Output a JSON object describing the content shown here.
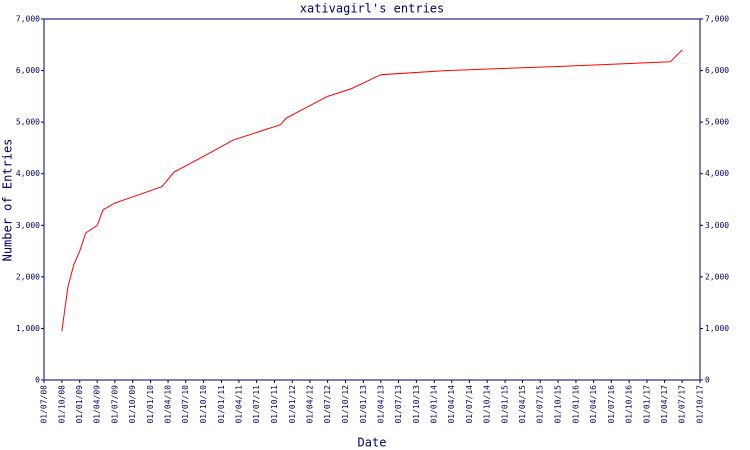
{
  "chart_data": {
    "type": "line",
    "title": "xativagirl's entries",
    "x_label": "Date",
    "y_label": "Number of Entries",
    "x": [
      "01/10/08",
      "01/11/08",
      "01/12/08",
      "01/01/09",
      "01/02/09",
      "01/04/09",
      "01/05/09",
      "01/07/09",
      "01/03/10",
      "01/05/10",
      "01/07/10",
      "01/11/10",
      "01/03/11",
      "01/11/11",
      "01/12/11",
      "01/07/12",
      "01/11/12",
      "01/04/13",
      "01/03/14",
      "01/10/15",
      "01/05/17",
      "01/07/17"
    ],
    "series": [
      {
        "name": "entries",
        "color": "#ff0000",
        "values": [
          950,
          1800,
          2230,
          2500,
          2850,
          3000,
          3300,
          3430,
          3750,
          4030,
          4150,
          4400,
          4650,
          4950,
          5080,
          5500,
          5650,
          5920,
          6000,
          6080,
          6170,
          6400
        ]
      }
    ],
    "xlim": [
      "01/07/08",
      "01/10/17"
    ],
    "xticks": [
      "01/07/08",
      "01/10/08",
      "01/01/09",
      "01/04/09",
      "01/07/09",
      "01/10/09",
      "01/01/10",
      "01/04/10",
      "01/07/10",
      "01/10/10",
      "01/01/11",
      "01/04/11",
      "01/07/11",
      "01/10/11",
      "01/01/12",
      "01/04/12",
      "01/07/12",
      "01/10/12",
      "01/01/13",
      "01/04/13",
      "01/07/13",
      "01/10/13",
      "01/01/14",
      "01/04/14",
      "01/07/14",
      "01/10/14",
      "01/01/15",
      "01/04/15",
      "01/07/15",
      "01/10/15",
      "01/01/16",
      "01/04/16",
      "01/07/16",
      "01/10/16",
      "01/01/17",
      "01/04/17",
      "01/07/17",
      "01/10/17"
    ],
    "ylim": [
      0,
      7000
    ],
    "yticks": [
      0,
      {
        "value": 1000,
        "label": "1,000"
      },
      {
        "value": 2000,
        "label": "2,000"
      },
      {
        "value": 3000,
        "label": "3,000"
      },
      {
        "value": 4000,
        "label": "4,000"
      },
      {
        "value": 5000,
        "label": "5,000"
      },
      {
        "value": 6000,
        "label": "6,000"
      },
      {
        "value": 7000,
        "label": "7,000"
      }
    ]
  }
}
